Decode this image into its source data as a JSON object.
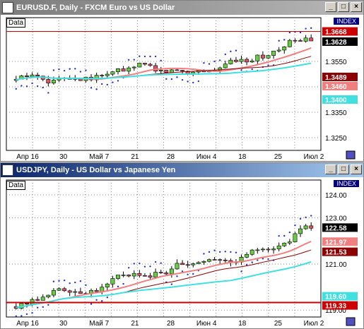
{
  "windows": [
    {
      "title": "EURUSD.F, Daily - FXCM Euro vs US Dollar",
      "panel_label": "Data",
      "index_label": "INDEX",
      "controls": [
        "_",
        "□",
        "×"
      ],
      "price_axis": [
        "1.3550",
        "1.3450",
        "1.3350",
        "1.3250"
      ],
      "price_badges": [
        {
          "text": "1.3668",
          "bg": "#cc0000",
          "fg": "#ffffff"
        },
        {
          "text": "1.3628",
          "bg": "#000000",
          "fg": "#ffffff"
        },
        {
          "text": "1.3489",
          "bg": "#8b0000",
          "fg": "#ffffff"
        },
        {
          "text": "1.3460",
          "bg": "#f08080",
          "fg": "#ffffff"
        },
        {
          "text": "1.3400",
          "bg": "#40e0e0",
          "fg": "#ffffff"
        }
      ],
      "date_labels": [
        "Апр 16",
        "30",
        "Май 7",
        "21",
        "28",
        "Июн 4",
        "18",
        "25",
        "Июл 2"
      ]
    },
    {
      "title": "USDJPY, Daily - US Dollar vs Japanese Yen",
      "panel_label": "Data",
      "index_label": "INDEX",
      "controls": [
        "_",
        "□",
        "×"
      ],
      "price_axis": [
        "124.00",
        "123.00",
        "121.00",
        "119.00"
      ],
      "price_badges": [
        {
          "text": "122.58",
          "bg": "#000000",
          "fg": "#ffffff"
        },
        {
          "text": "121.97",
          "bg": "#f08080",
          "fg": "#ffffff"
        },
        {
          "text": "121.53",
          "bg": "#8b0000",
          "fg": "#ffffff"
        },
        {
          "text": "119.60",
          "bg": "#40e0e0",
          "fg": "#ffffff"
        },
        {
          "text": "119.33",
          "bg": "#cc0000",
          "fg": "#ffffff"
        }
      ],
      "date_labels": [
        "Апр 16",
        "30",
        "Май 7",
        "21",
        "28",
        "Июн 4",
        "18",
        "25",
        "Июл 2"
      ]
    }
  ],
  "colors": {
    "up_candle": "#66cc44",
    "down_candle": "#dd5566",
    "sar_dots": "#2233cc",
    "ma_fast": "#f08080",
    "ma_slow": "#8b0000",
    "ma_cyan": "#40e0e0",
    "resistance": "#cc0000"
  },
  "chart_data": [
    {
      "type": "candlestick",
      "title": "EURUSD.F, Daily - FXCM Euro vs US Dollar",
      "ylim": [
        1.32,
        1.37
      ],
      "y_ticks": [
        1.355,
        1.345,
        1.335,
        1.325
      ],
      "x_labels": [
        "Апр 16",
        "30",
        "Май 7",
        "21",
        "28",
        "Июн 4",
        "18",
        "25",
        "Июл 2"
      ],
      "last_close": 1.3628,
      "levels": {
        "resistance": 1.3668,
        "ma_slow": 1.3489,
        "ma_fast": 1.346,
        "ma_cyan": 1.34
      }
    },
    {
      "type": "candlestick",
      "title": "USDJPY, Daily - US Dollar vs Japanese Yen",
      "ylim": [
        118.7,
        124.4
      ],
      "y_ticks": [
        124.0,
        123.0,
        121.0,
        119.0
      ],
      "x_labels": [
        "Апр 16",
        "30",
        "Май 7",
        "21",
        "28",
        "Июн 4",
        "18",
        "25",
        "Июл 2"
      ],
      "last_close": 122.58,
      "levels": {
        "ma_fast": 121.97,
        "ma_slow": 121.53,
        "ma_cyan": 119.6,
        "resistance": 119.33
      }
    }
  ]
}
